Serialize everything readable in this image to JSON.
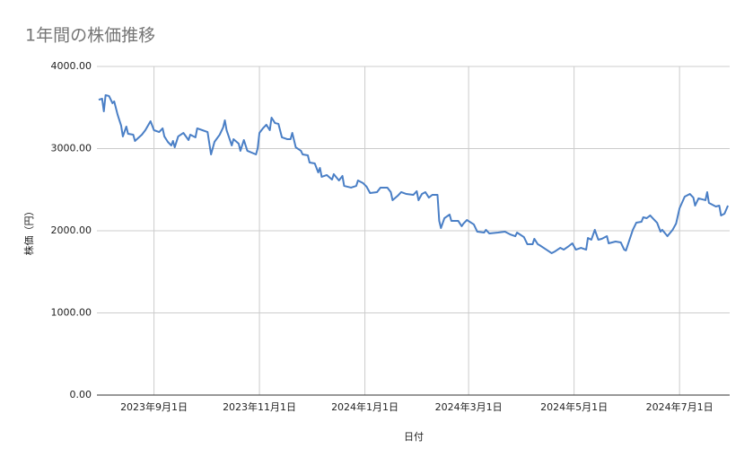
{
  "chart_data": {
    "type": "line",
    "title": "1年間の株価推移",
    "xlabel": "日付",
    "ylabel": "株価（円）",
    "xlim": [
      "2023-07-30",
      "2024-07-30"
    ],
    "ylim": [
      0,
      4000
    ],
    "xticks": [
      {
        "value": "2023-09-01",
        "label": "2023年9月1日"
      },
      {
        "value": "2023-11-01",
        "label": "2023年11月1日"
      },
      {
        "value": "2024-01-01",
        "label": "2024年1月1日"
      },
      {
        "value": "2024-03-01",
        "label": "2024年3月1日"
      },
      {
        "value": "2024-05-01",
        "label": "2024年5月1日"
      },
      {
        "value": "2024-07-01",
        "label": "2024年7月1日"
      }
    ],
    "yticks": [
      {
        "value": 0,
        "label": "0.00"
      },
      {
        "value": 1000,
        "label": "1000.00"
      },
      {
        "value": 2000,
        "label": "2000.00"
      },
      {
        "value": 3000,
        "label": "3000.00"
      },
      {
        "value": 4000,
        "label": "4000.00"
      }
    ],
    "grid": true,
    "x": [
      "2023-07-31",
      "2023-08-02",
      "2023-08-03",
      "2023-08-04",
      "2023-08-06",
      "2023-08-08",
      "2023-08-09",
      "2023-08-11",
      "2023-08-13",
      "2023-08-14",
      "2023-08-16",
      "2023-08-17",
      "2023-08-20",
      "2023-08-21",
      "2023-08-25",
      "2023-08-27",
      "2023-08-30",
      "2023-09-01",
      "2023-09-04",
      "2023-09-06",
      "2023-09-07",
      "2023-09-09",
      "2023-09-11",
      "2023-09-12",
      "2023-09-13",
      "2023-09-15",
      "2023-09-18",
      "2023-09-21",
      "2023-09-22",
      "2023-09-25",
      "2023-09-26",
      "2023-09-29",
      "2023-10-02",
      "2023-10-04",
      "2023-10-06",
      "2023-10-09",
      "2023-10-11",
      "2023-10-12",
      "2023-10-13",
      "2023-10-16",
      "2023-10-17",
      "2023-10-20",
      "2023-10-21",
      "2023-10-23",
      "2023-10-25",
      "2023-10-30",
      "2023-10-31",
      "2023-11-01",
      "2023-11-03",
      "2023-11-05",
      "2023-11-07",
      "2023-11-08",
      "2023-11-10",
      "2023-11-12",
      "2023-11-14",
      "2023-11-17",
      "2023-11-19",
      "2023-11-20",
      "2023-11-22",
      "2023-11-25",
      "2023-11-26",
      "2023-11-29",
      "2023-11-30",
      "2023-12-03",
      "2023-12-05",
      "2023-12-06",
      "2023-12-07",
      "2023-12-10",
      "2023-12-13",
      "2023-12-14",
      "2023-12-17",
      "2023-12-19",
      "2023-12-20",
      "2023-12-24",
      "2023-12-27",
      "2023-12-28",
      "2023-12-31",
      "2024-01-02",
      "2024-01-04",
      "2024-01-08",
      "2024-01-10",
      "2024-01-14",
      "2024-01-16",
      "2024-01-17",
      "2024-01-20",
      "2024-01-22",
      "2024-01-25",
      "2024-01-29",
      "2024-01-31",
      "2024-02-01",
      "2024-02-03",
      "2024-02-05",
      "2024-02-07",
      "2024-02-09",
      "2024-02-12",
      "2024-02-13",
      "2024-02-14",
      "2024-02-16",
      "2024-02-19",
      "2024-02-20",
      "2024-02-24",
      "2024-02-26",
      "2024-02-27",
      "2024-02-29",
      "2024-03-04",
      "2024-03-06",
      "2024-03-10",
      "2024-03-11",
      "2024-03-13",
      "2024-03-18",
      "2024-03-22",
      "2024-03-25",
      "2024-03-28",
      "2024-03-29",
      "2024-04-02",
      "2024-04-04",
      "2024-04-07",
      "2024-04-08",
      "2024-04-10",
      "2024-04-11",
      "2024-04-15",
      "2024-04-18",
      "2024-04-20",
      "2024-04-23",
      "2024-04-25",
      "2024-04-28",
      "2024-04-30",
      "2024-05-02",
      "2024-05-05",
      "2024-05-08",
      "2024-05-09",
      "2024-05-11",
      "2024-05-13",
      "2024-05-15",
      "2024-05-17",
      "2024-05-20",
      "2024-05-21",
      "2024-05-25",
      "2024-05-28",
      "2024-05-30",
      "2024-05-31",
      "2024-06-04",
      "2024-06-06",
      "2024-06-09",
      "2024-06-10",
      "2024-06-12",
      "2024-06-14",
      "2024-06-16",
      "2024-06-18",
      "2024-06-20",
      "2024-06-21",
      "2024-06-24",
      "2024-06-27",
      "2024-06-29",
      "2024-07-01",
      "2024-07-04",
      "2024-07-07",
      "2024-07-09",
      "2024-07-10",
      "2024-07-12",
      "2024-07-16",
      "2024-07-17",
      "2024-07-18",
      "2024-07-22",
      "2024-07-24",
      "2024-07-25",
      "2024-07-27",
      "2024-07-29"
    ],
    "series": [
      {
        "name": "株価",
        "color": "#4a7fc6",
        "values": [
          3595,
          3607,
          3454,
          3650,
          3640,
          3552,
          3574,
          3410,
          3279,
          3148,
          3268,
          3180,
          3169,
          3093,
          3169,
          3224,
          3333,
          3224,
          3202,
          3246,
          3148,
          3082,
          3038,
          3093,
          3016,
          3148,
          3191,
          3104,
          3169,
          3137,
          3246,
          3224,
          3202,
          2929,
          3082,
          3169,
          3257,
          3344,
          3224,
          3038,
          3115,
          3060,
          2973,
          3104,
          2973,
          2929,
          3005,
          3191,
          3246,
          3290,
          3224,
          3377,
          3311,
          3301,
          3137,
          3115,
          3115,
          3191,
          3016,
          2973,
          2929,
          2918,
          2831,
          2820,
          2710,
          2765,
          2656,
          2678,
          2623,
          2689,
          2612,
          2667,
          2546,
          2525,
          2546,
          2612,
          2579,
          2536,
          2459,
          2470,
          2525,
          2525,
          2470,
          2372,
          2426,
          2470,
          2448,
          2437,
          2481,
          2372,
          2448,
          2470,
          2404,
          2437,
          2437,
          2120,
          2033,
          2153,
          2197,
          2120,
          2120,
          2055,
          2087,
          2131,
          2077,
          1989,
          1978,
          2011,
          1967,
          1978,
          1989,
          1956,
          1934,
          1978,
          1923,
          1836,
          1836,
          1902,
          1836,
          1825,
          1770,
          1727,
          1749,
          1792,
          1770,
          1814,
          1847,
          1770,
          1792,
          1770,
          1912,
          1891,
          2011,
          1891,
          1902,
          1934,
          1847,
          1869,
          1858,
          1770,
          1760,
          2011,
          2098,
          2109,
          2164,
          2153,
          2186,
          2142,
          2098,
          1989,
          2011,
          1934,
          2011,
          2087,
          2273,
          2415,
          2448,
          2404,
          2306,
          2394,
          2372,
          2470,
          2339,
          2295,
          2306,
          2186,
          2208,
          2306
        ]
      }
    ]
  }
}
